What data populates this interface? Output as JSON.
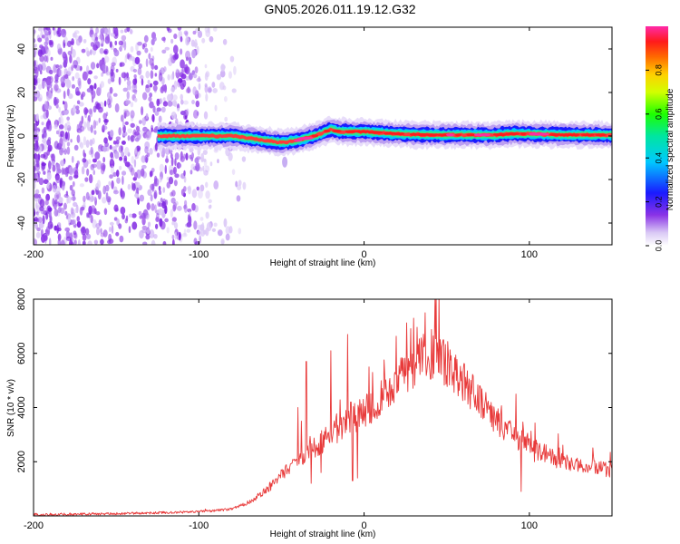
{
  "title": "GN05.2026.011.19.12.G32",
  "colors": {
    "line": "#e8312e",
    "snr_series": "#e83a3a"
  },
  "chart_data": [
    {
      "type": "heatmap",
      "name": "spectrogram",
      "xlabel": "Height of straight line (km)",
      "ylabel": "Frequency (Hz)",
      "xlim": [
        -200,
        150
      ],
      "ylim": [
        -50,
        50
      ],
      "xticks": [
        -200,
        -100,
        0,
        100
      ],
      "yticks": [
        -40,
        -20,
        0,
        20,
        40
      ],
      "colorbar": {
        "label": "Normalized spectral amplitude",
        "range": [
          0,
          1
        ],
        "ticks": [
          "0.0",
          "0.2",
          "0.4",
          "0.6",
          "0.8"
        ]
      },
      "noise_region_km": [
        -200,
        -70
      ],
      "signal_start_km": -125,
      "trace_hz": [
        [
          -125,
          0
        ],
        [
          -110,
          0
        ],
        [
          -95,
          0
        ],
        [
          -80,
          0
        ],
        [
          -70,
          -1
        ],
        [
          -60,
          -2
        ],
        [
          -50,
          -3
        ],
        [
          -40,
          -2
        ],
        [
          -30,
          0
        ],
        [
          -20,
          3
        ],
        [
          -15,
          2
        ],
        [
          0,
          2
        ],
        [
          20,
          1
        ],
        [
          40,
          0.5
        ],
        [
          60,
          0.5
        ],
        [
          80,
          0.5
        ],
        [
          90,
          1
        ],
        [
          100,
          1
        ],
        [
          120,
          0.5
        ],
        [
          150,
          0.5
        ]
      ]
    },
    {
      "type": "line",
      "name": "snr",
      "xlabel": "Height of straight line (km)",
      "ylabel": "SNR (10 * v/v)",
      "xlim": [
        -200,
        150
      ],
      "ylim": [
        0,
        8000
      ],
      "xticks": [
        -200,
        -100,
        0,
        100
      ],
      "yticks": [
        2000,
        4000,
        6000,
        8000
      ],
      "envelope": [
        [
          -200,
          50
        ],
        [
          -150,
          80
        ],
        [
          -100,
          150
        ],
        [
          -80,
          250
        ],
        [
          -70,
          500
        ],
        [
          -60,
          900
        ],
        [
          -50,
          1500
        ],
        [
          -40,
          2100
        ],
        [
          -30,
          2500
        ],
        [
          -20,
          3000
        ],
        [
          -10,
          3500
        ],
        [
          0,
          3800
        ],
        [
          10,
          4400
        ],
        [
          20,
          5000
        ],
        [
          30,
          5600
        ],
        [
          40,
          6000
        ],
        [
          50,
          5600
        ],
        [
          60,
          4900
        ],
        [
          70,
          4300
        ],
        [
          80,
          3500
        ],
        [
          90,
          3000
        ],
        [
          100,
          2600
        ],
        [
          110,
          2300
        ],
        [
          120,
          2000
        ],
        [
          130,
          1850
        ],
        [
          140,
          1750
        ],
        [
          150,
          1700
        ]
      ],
      "spikes": [
        [
          -45,
          1800
        ],
        [
          -40,
          4000
        ],
        [
          -38,
          3500
        ],
        [
          -35,
          5700
        ],
        [
          -20,
          6100
        ],
        [
          -10,
          6700
        ],
        [
          -8,
          4200
        ],
        [
          -3,
          3300
        ],
        [
          3,
          5500
        ],
        [
          5,
          5300
        ],
        [
          30,
          7300
        ],
        [
          37,
          7500
        ],
        [
          43,
          8000
        ],
        [
          48,
          6500
        ],
        [
          60,
          5400
        ],
        [
          70,
          4800
        ],
        [
          78,
          3600
        ],
        [
          92,
          4500
        ],
        [
          95,
          4800
        ],
        [
          103,
          2000
        ]
      ],
      "dips": [
        [
          -32,
          1200
        ],
        [
          -26,
          1600
        ],
        [
          -7,
          1300
        ],
        [
          -4,
          1400
        ],
        [
          95,
          900
        ]
      ]
    }
  ]
}
